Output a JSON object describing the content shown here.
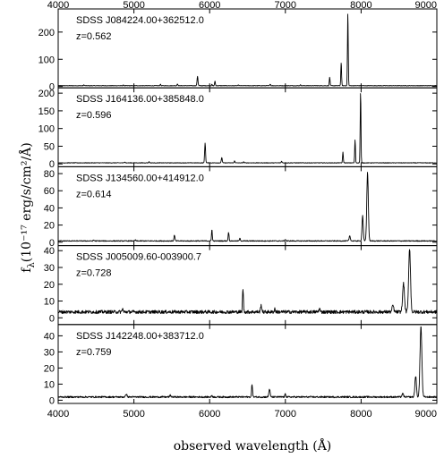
{
  "chart_data": {
    "type": "line",
    "xlabel": "observed wavelength (Å)",
    "ylabel": "f_λ(10⁻¹⁷ erg/s/cm²/Å)",
    "ylabel_main": "f",
    "ylabel_sub": "λ",
    "ylabel_rest": "(10⁻¹⁷ erg/s/cm²/Å)",
    "xlim": [
      4000,
      9000
    ],
    "xticks": [
      4000,
      5000,
      6000,
      7000,
      8000,
      9000
    ],
    "panels": [
      {
        "name": "SDSS J084224.00+362512.0",
        "z": "z=0.562",
        "ylim": [
          -5,
          285
        ],
        "yticks": [
          0,
          100,
          200
        ],
        "baseline": 3,
        "noise": 0.8,
        "lines": [
          [
            4340,
            3,
            5
          ],
          [
            4860,
            2,
            5
          ],
          [
            5350,
            5,
            5
          ],
          [
            5575,
            7,
            5
          ],
          [
            5840,
            35,
            6
          ],
          [
            6030,
            5,
            4
          ],
          [
            6070,
            17,
            5
          ],
          [
            6380,
            3,
            4
          ],
          [
            6800,
            6,
            5
          ],
          [
            7200,
            3,
            5
          ],
          [
            7585,
            32,
            5
          ],
          [
            7737,
            85,
            5
          ],
          [
            7825,
            268,
            5
          ]
        ]
      },
      {
        "name": "SDSS J164136.00+385848.0",
        "z": "z=0.596",
        "ylim": [
          -8,
          215
        ],
        "yticks": [
          0,
          50,
          100,
          150,
          200
        ],
        "baseline": 3,
        "noise": 0.8,
        "lines": [
          [
            4880,
            3,
            5
          ],
          [
            5200,
            3,
            5
          ],
          [
            5940,
            55,
            6
          ],
          [
            6160,
            15,
            6
          ],
          [
            6330,
            6,
            5
          ],
          [
            6450,
            3,
            5
          ],
          [
            6950,
            5,
            5
          ],
          [
            7760,
            30,
            5
          ],
          [
            7920,
            65,
            5
          ],
          [
            7993,
            200,
            5
          ]
        ]
      },
      {
        "name": "SDSS J134560.00+414912.0",
        "z": "z=0.614",
        "ylim": [
          -4,
          88
        ],
        "yticks": [
          0,
          20,
          40,
          60,
          80
        ],
        "baseline": 1.5,
        "noise": 0.5,
        "lines": [
          [
            4470,
            1,
            6
          ],
          [
            5020,
            1,
            6
          ],
          [
            5535,
            7,
            6
          ],
          [
            6030,
            14,
            5
          ],
          [
            6250,
            10,
            6
          ],
          [
            6400,
            3,
            6
          ],
          [
            7000,
            2,
            6
          ],
          [
            7850,
            6,
            8
          ],
          [
            8020,
            30,
            8
          ],
          [
            8085,
            80,
            10
          ]
        ]
      },
      {
        "name": "SDSS J005009.60-003900.7",
        "z": "z=0.728",
        "ylim": [
          -4,
          43
        ],
        "yticks": [
          0,
          10,
          20,
          30,
          40
        ],
        "baseline": 3.5,
        "noise": 1.0,
        "lines": [
          [
            4850,
            2,
            6
          ],
          [
            6440,
            14,
            6
          ],
          [
            6680,
            4,
            8
          ],
          [
            6860,
            2,
            6
          ],
          [
            7450,
            2,
            8
          ],
          [
            8420,
            4,
            10
          ],
          [
            8560,
            17,
            12
          ],
          [
            8640,
            38,
            12
          ]
        ]
      },
      {
        "name": "SDSS J142248.00+383712.0",
        "z": "z=0.759",
        "ylim": [
          -2,
          47
        ],
        "yticks": [
          0,
          10,
          20,
          30,
          40
        ],
        "baseline": 2,
        "noise": 0.5,
        "lines": [
          [
            4900,
            2,
            8
          ],
          [
            5480,
            1,
            8
          ],
          [
            6030,
            1,
            6
          ],
          [
            6560,
            8,
            6
          ],
          [
            6790,
            5,
            8
          ],
          [
            7000,
            2,
            6
          ],
          [
            8550,
            2,
            10
          ],
          [
            8720,
            13,
            10
          ],
          [
            8790,
            44,
            12
          ]
        ]
      }
    ]
  }
}
